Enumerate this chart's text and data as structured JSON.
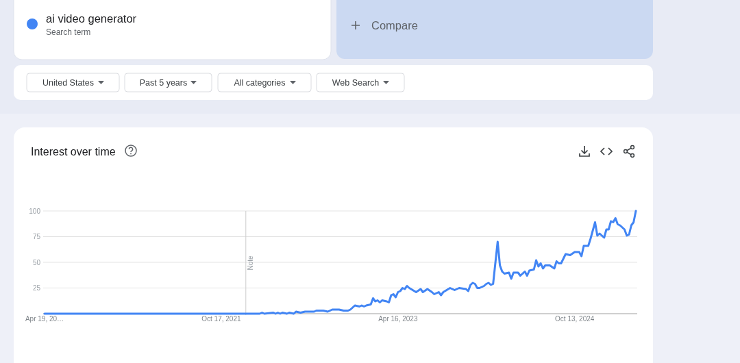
{
  "chart_data": {
    "type": "line",
    "title": "Interest over time",
    "legend": "top left",
    "series": [
      {
        "name": "ai video generator",
        "color": "#4285f4",
        "x": [
          "2020-04-19",
          "2022-02-13",
          "2022-02-20",
          "2022-02-27",
          "2022-03-27",
          "2022-04-03",
          "2022-04-10",
          "2022-04-17",
          "2022-04-24",
          "2022-05-08",
          "2022-05-15",
          "2022-05-29",
          "2022-06-05",
          "2022-06-19",
          "2022-07-03",
          "2022-07-31",
          "2022-08-07",
          "2022-08-21",
          "2022-08-28",
          "2022-09-11",
          "2022-09-25",
          "2022-10-16",
          "2022-10-30",
          "2022-11-13",
          "2022-11-20",
          "2022-11-27",
          "2022-12-04",
          "2022-12-18",
          "2022-12-25",
          "2023-01-01",
          "2023-01-08",
          "2023-01-22",
          "2023-01-29",
          "2023-02-05",
          "2023-02-12",
          "2023-02-19",
          "2023-02-26",
          "2023-03-12",
          "2023-03-19",
          "2023-03-26",
          "2023-04-02",
          "2023-04-09",
          "2023-04-16",
          "2023-04-23",
          "2023-04-30",
          "2023-05-07",
          "2023-05-14",
          "2023-05-21",
          "2023-06-11",
          "2023-06-25",
          "2023-07-02",
          "2023-07-16",
          "2023-07-30",
          "2023-08-06",
          "2023-08-20",
          "2023-08-27",
          "2023-09-03",
          "2023-09-24",
          "2023-10-08",
          "2023-10-22",
          "2023-11-12",
          "2023-11-19",
          "2023-11-26",
          "2023-12-03",
          "2023-12-10",
          "2023-12-17",
          "2023-12-24",
          "2024-01-07",
          "2024-01-14",
          "2024-01-21",
          "2024-01-28",
          "2024-02-04",
          "2024-02-18",
          "2024-02-25",
          "2024-03-03",
          "2024-03-10",
          "2024-03-24",
          "2024-03-31",
          "2024-04-07",
          "2024-04-21",
          "2024-04-28",
          "2024-05-12",
          "2024-05-19",
          "2024-05-26",
          "2024-06-09",
          "2024-06-16",
          "2024-06-23",
          "2024-06-30",
          "2024-07-07",
          "2024-07-14",
          "2024-07-28",
          "2024-08-11",
          "2024-08-18",
          "2024-08-25",
          "2024-09-01",
          "2024-09-15",
          "2024-09-29",
          "2024-10-13",
          "2024-10-27",
          "2024-11-03",
          "2024-11-10",
          "2024-11-24",
          "2024-12-01",
          "2024-12-15",
          "2024-12-22",
          "2024-12-29",
          "2025-01-12",
          "2025-01-19",
          "2025-01-26",
          "2025-02-02",
          "2025-02-09",
          "2025-02-16",
          "2025-02-23",
          "2025-03-02",
          "2025-03-16",
          "2025-03-23",
          "2025-03-30",
          "2025-04-06",
          "2025-04-13",
          "2025-04-20"
        ],
        "values": [
          0,
          0,
          1,
          0,
          1,
          0,
          1,
          0,
          1,
          0,
          1,
          0,
          2,
          1,
          2,
          2,
          3,
          3,
          3,
          2,
          4,
          4,
          3,
          3,
          4,
          6,
          8,
          7,
          8,
          7,
          8,
          9,
          15,
          12,
          13,
          11,
          13,
          12,
          11,
          18,
          19,
          16,
          21,
          22,
          25,
          24,
          27,
          25,
          21,
          24,
          21,
          24,
          21,
          19,
          21,
          18,
          21,
          25,
          23,
          25,
          24,
          22,
          28,
          30,
          29,
          25,
          25,
          27,
          29,
          30,
          28,
          29,
          70,
          47,
          41,
          39,
          40,
          34,
          40,
          40,
          37,
          41,
          37,
          42,
          43,
          52,
          46,
          49,
          44,
          47,
          47,
          44,
          51,
          49,
          49,
          58,
          57,
          60,
          60,
          56,
          66,
          66,
          73,
          89,
          76,
          78,
          74,
          82,
          82,
          90,
          89,
          93,
          87,
          86,
          82,
          76,
          77,
          86,
          89,
          100
        ]
      }
    ],
    "xlim": [
      "2020-04-19",
      "2025-04-20"
    ],
    "xticks": [
      {
        "value": "2020-04-19",
        "label": "Apr 19, 20…"
      },
      {
        "value": "2021-10-17",
        "label": "Oct 17, 2021"
      },
      {
        "value": "2023-04-16",
        "label": "Apr 16, 2023"
      },
      {
        "value": "2024-10-13",
        "label": "Oct 13, 2024"
      }
    ],
    "ylim": [
      0,
      100
    ],
    "yticks": [
      25,
      50,
      75,
      100
    ],
    "grid": "y",
    "ref_lines": [
      {
        "axis": "x",
        "value": "2022-01-01",
        "label": "Note",
        "color": "#cccccc"
      }
    ],
    "annotations": [
      "Search term",
      "Compare",
      "United States",
      "Past 5 years",
      "All categories",
      "Web Search"
    ]
  }
}
